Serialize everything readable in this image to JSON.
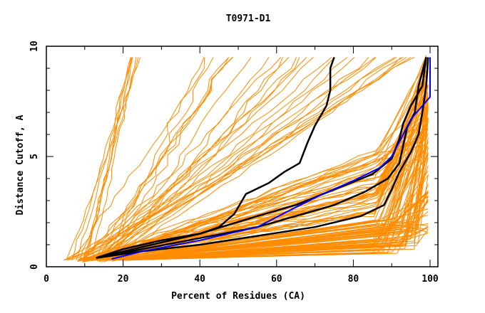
{
  "chart_data": {
    "type": "line",
    "title": "T0971-D1",
    "xlabel": "Percent of Residues (CA)",
    "ylabel": "Distance Cutoff, A",
    "xlim": [
      0,
      101
    ],
    "ylim": [
      0,
      10
    ],
    "xticks": [
      0,
      20,
      40,
      60,
      80,
      100
    ],
    "xtick_labels": [
      "0",
      "20",
      "40",
      "60",
      "80",
      "100"
    ],
    "yticks": [
      0,
      5,
      10
    ],
    "ytick_labels": [
      "0",
      "5",
      "10"
    ],
    "grid": false,
    "colors": {
      "others": "#ff8c00",
      "highlight": "#000000",
      "reference": "#0000ff"
    },
    "series": [
      {
        "name": "model-black-1",
        "color": "#000000",
        "points": [
          [
            13,
            0.4
          ],
          [
            20,
            0.8
          ],
          [
            30,
            1.2
          ],
          [
            40,
            1.5
          ],
          [
            45,
            1.8
          ],
          [
            49,
            2.4
          ],
          [
            52,
            3.3
          ],
          [
            58,
            3.8
          ],
          [
            62,
            4.3
          ],
          [
            66,
            4.7
          ],
          [
            68,
            5.6
          ],
          [
            70,
            6.4
          ],
          [
            73,
            7.3
          ],
          [
            74,
            8.0
          ],
          [
            74,
            9.0
          ],
          [
            75,
            9.5
          ]
        ]
      },
      {
        "name": "model-black-2",
        "color": "#000000",
        "points": [
          [
            13,
            0.4
          ],
          [
            25,
            0.8
          ],
          [
            40,
            1.3
          ],
          [
            55,
            1.8
          ],
          [
            65,
            2.3
          ],
          [
            75,
            2.8
          ],
          [
            83,
            3.4
          ],
          [
            89,
            4.0
          ],
          [
            92,
            4.7
          ],
          [
            93,
            5.5
          ],
          [
            94,
            6.3
          ],
          [
            96,
            7.0
          ],
          [
            97,
            8.2
          ],
          [
            99,
            9.5
          ]
        ]
      },
      {
        "name": "model-black-3",
        "color": "#000000",
        "points": [
          [
            13,
            0.4
          ],
          [
            25,
            0.7
          ],
          [
            40,
            1.0
          ],
          [
            55,
            1.4
          ],
          [
            70,
            1.8
          ],
          [
            82,
            2.3
          ],
          [
            88,
            2.8
          ],
          [
            90,
            3.5
          ],
          [
            92,
            4.3
          ],
          [
            95,
            5.2
          ],
          [
            97,
            6.0
          ],
          [
            98,
            7.0
          ],
          [
            99,
            8.2
          ],
          [
            99.5,
            9.5
          ]
        ]
      },
      {
        "name": "model-black-4",
        "color": "#000000",
        "points": [
          [
            13,
            0.4
          ],
          [
            25,
            0.9
          ],
          [
            40,
            1.5
          ],
          [
            55,
            2.3
          ],
          [
            65,
            2.8
          ],
          [
            75,
            3.5
          ],
          [
            85,
            4.2
          ],
          [
            90,
            4.9
          ],
          [
            92,
            5.8
          ],
          [
            93,
            6.5
          ],
          [
            95,
            7.3
          ],
          [
            98,
            8.2
          ],
          [
            99,
            9.5
          ]
        ]
      },
      {
        "name": "reference-blue",
        "color": "#0000ff",
        "points": [
          [
            17,
            0.35
          ],
          [
            25,
            0.7
          ],
          [
            40,
            1.2
          ],
          [
            55,
            1.8
          ],
          [
            65,
            2.7
          ],
          [
            72,
            3.3
          ],
          [
            80,
            3.9
          ],
          [
            87,
            4.5
          ],
          [
            90,
            5.0
          ],
          [
            93,
            6.0
          ],
          [
            95,
            6.7
          ],
          [
            97,
            7.1
          ],
          [
            100,
            7.7
          ],
          [
            100,
            9.5
          ]
        ]
      }
    ],
    "background_series_description": "approximately 150 orange model curves spanning 4-100% of residues across 0.3-9.5 A cutoff"
  }
}
